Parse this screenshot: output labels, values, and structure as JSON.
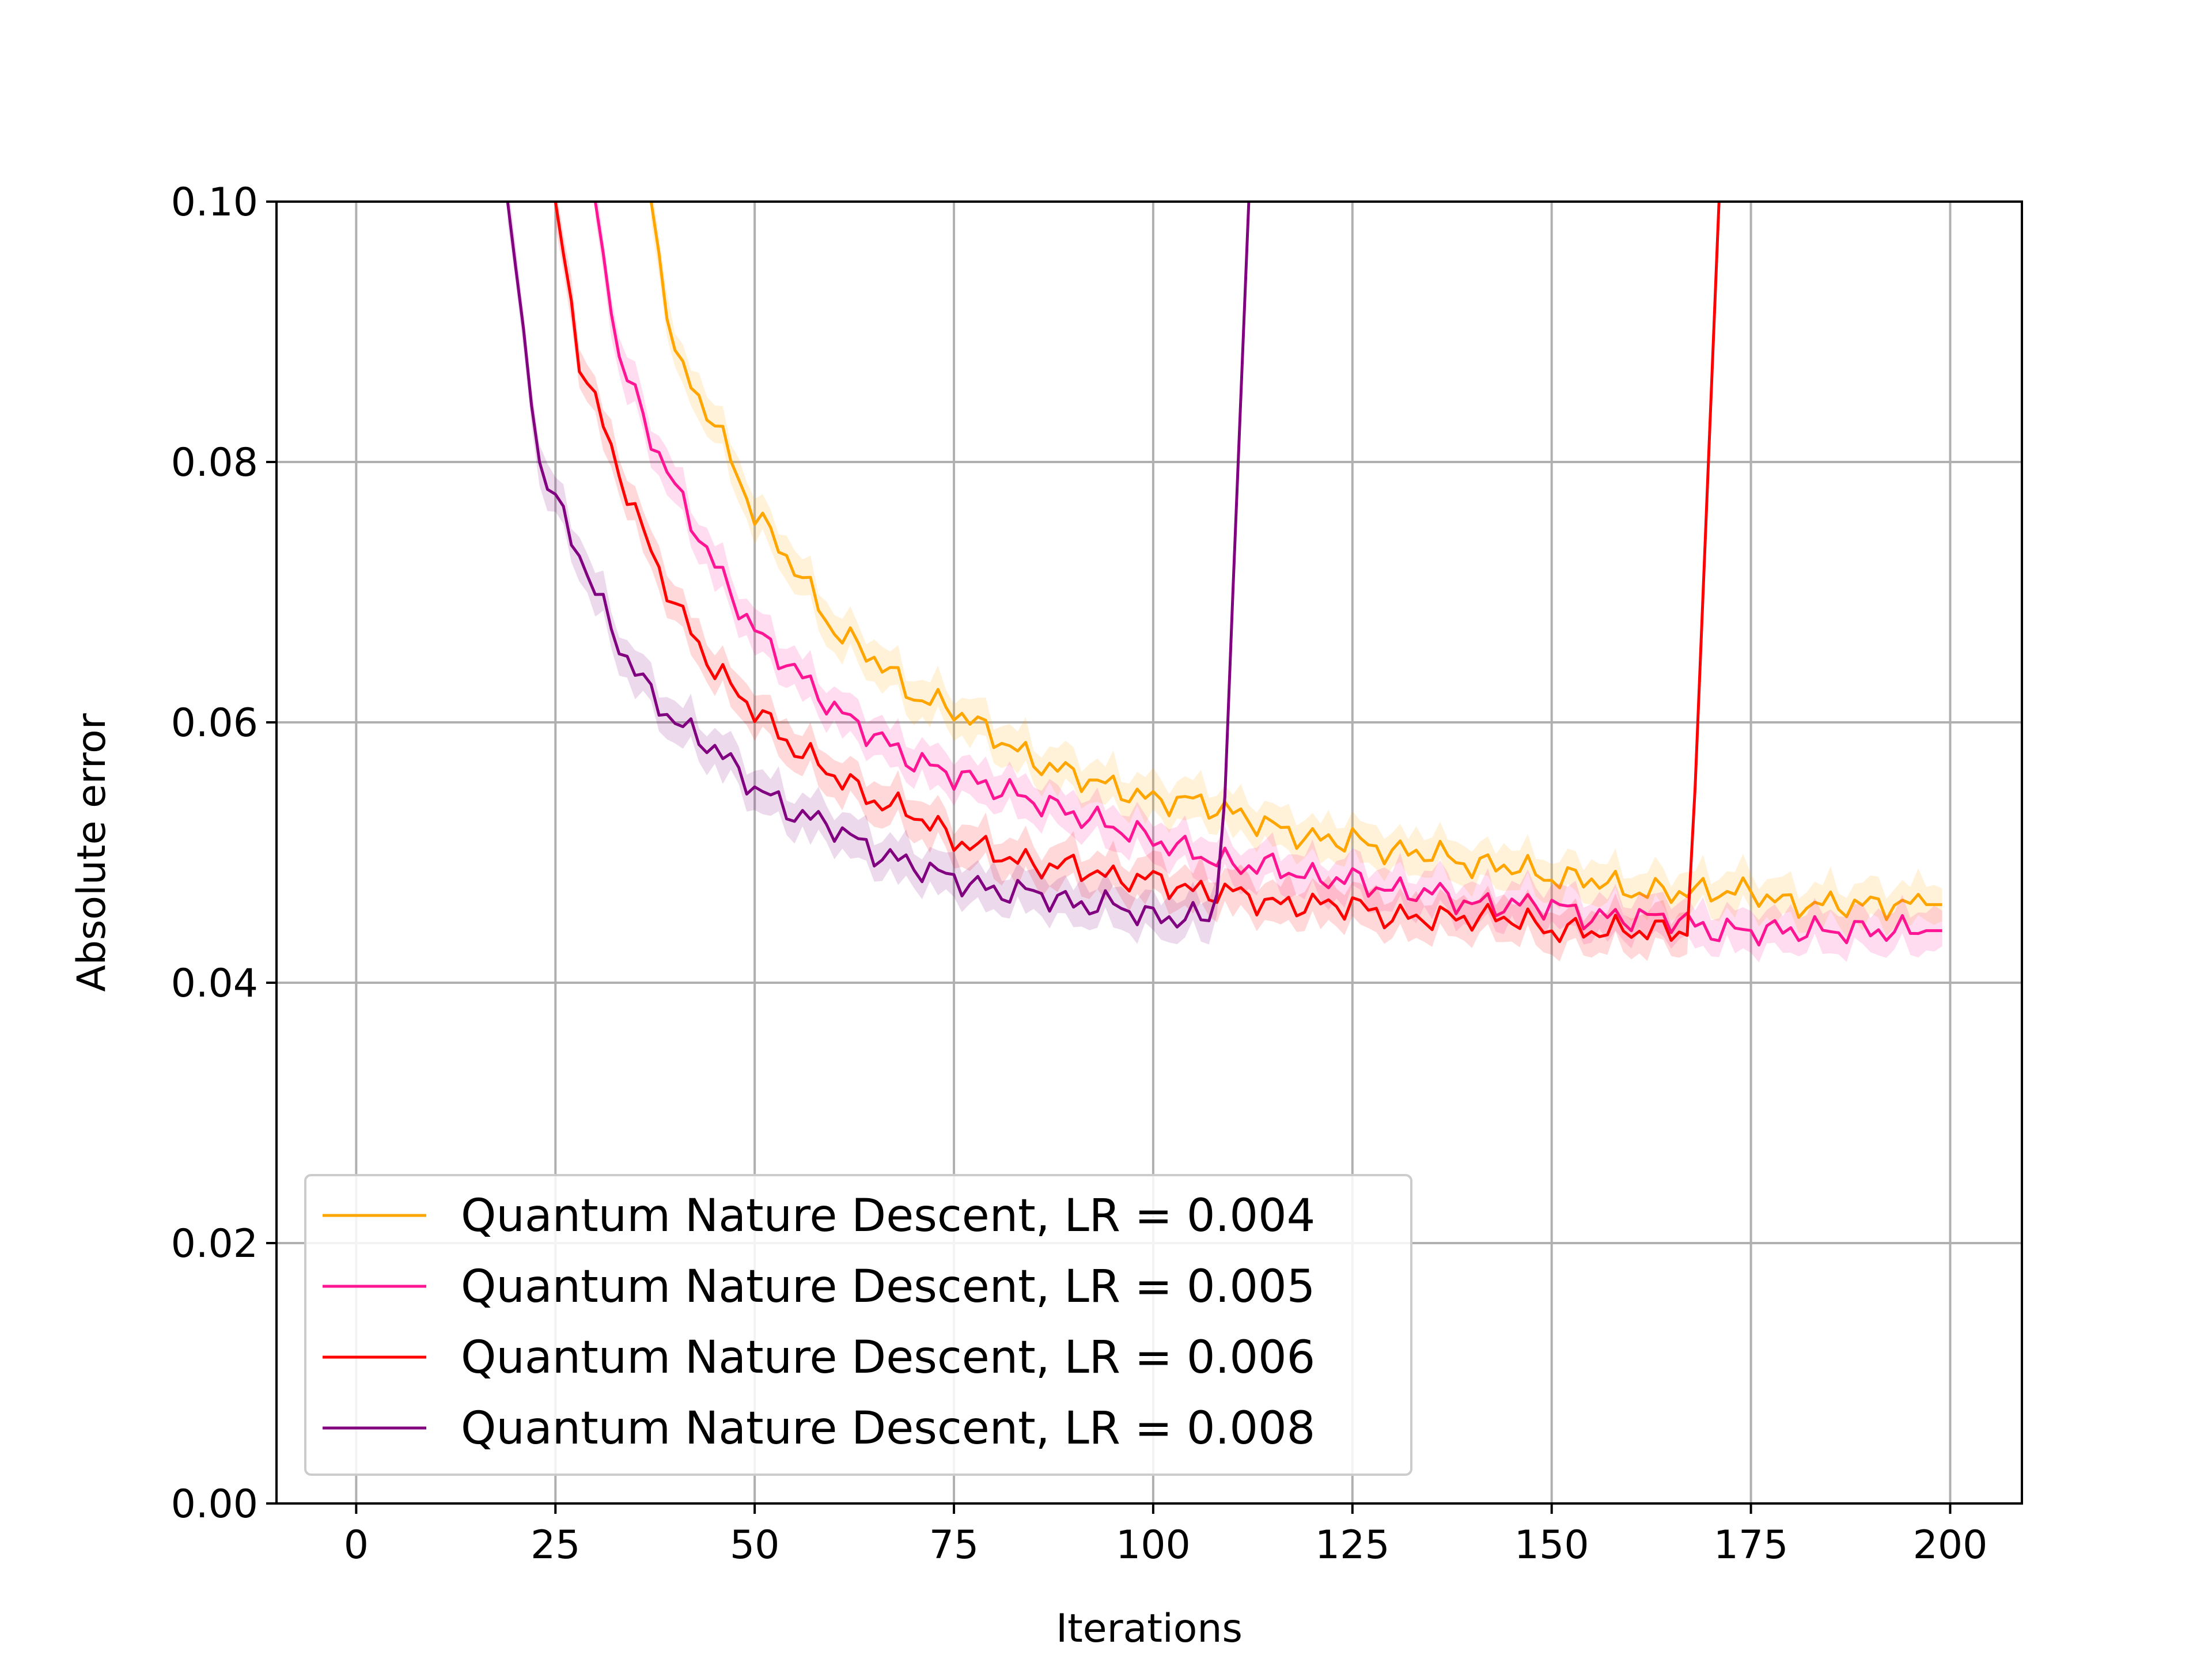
{
  "chart_data": {
    "type": "line",
    "title": "",
    "xlabel": "Iterations",
    "ylabel": "Absolute error",
    "xlim": [
      -10,
      209
    ],
    "ylim": [
      0.0,
      0.1
    ],
    "xticks": [
      0,
      25,
      50,
      75,
      100,
      125,
      150,
      175,
      200
    ],
    "yticks": [
      0.0,
      0.02,
      0.04,
      0.06,
      0.08,
      0.1
    ],
    "xtick_labels": [
      "0",
      "25",
      "50",
      "75",
      "100",
      "125",
      "150",
      "175",
      "200"
    ],
    "ytick_labels": [
      "0.00",
      "0.02",
      "0.04",
      "0.06",
      "0.08",
      "0.10"
    ],
    "grid": true,
    "legend_position": "lower-left",
    "series": [
      {
        "name": "Quantum Nature Descent, LR = 0.004",
        "color": "#FFA500",
        "shaded_band": true,
        "points": [
          [
            37,
            0.1
          ],
          [
            40,
            0.088
          ],
          [
            45,
            0.083
          ],
          [
            50,
            0.076
          ],
          [
            55,
            0.072
          ],
          [
            60,
            0.067
          ],
          [
            65,
            0.065
          ],
          [
            70,
            0.062
          ],
          [
            75,
            0.061
          ],
          [
            80,
            0.059
          ],
          [
            85,
            0.057
          ],
          [
            90,
            0.056
          ],
          [
            95,
            0.055
          ],
          [
            100,
            0.054
          ],
          [
            105,
            0.054
          ],
          [
            110,
            0.053
          ],
          [
            115,
            0.052
          ],
          [
            120,
            0.051
          ],
          [
            125,
            0.051
          ],
          [
            130,
            0.05
          ],
          [
            135,
            0.05
          ],
          [
            140,
            0.049
          ],
          [
            145,
            0.049
          ],
          [
            150,
            0.048
          ],
          [
            155,
            0.048
          ],
          [
            160,
            0.047
          ],
          [
            165,
            0.047
          ],
          [
            170,
            0.047
          ],
          [
            175,
            0.047
          ],
          [
            180,
            0.046
          ],
          [
            185,
            0.046
          ],
          [
            190,
            0.046
          ],
          [
            195,
            0.046
          ],
          [
            199,
            0.046
          ]
        ]
      },
      {
        "name": "Quantum Nature Descent, LR = 0.005",
        "color": "#FF1493",
        "shaded_band": true,
        "points": [
          [
            30,
            0.1
          ],
          [
            33,
            0.088
          ],
          [
            37,
            0.082
          ],
          [
            40,
            0.078
          ],
          [
            45,
            0.072
          ],
          [
            50,
            0.067
          ],
          [
            55,
            0.064
          ],
          [
            60,
            0.061
          ],
          [
            65,
            0.059
          ],
          [
            70,
            0.057
          ],
          [
            75,
            0.056
          ],
          [
            80,
            0.055
          ],
          [
            85,
            0.054
          ],
          [
            90,
            0.053
          ],
          [
            95,
            0.052
          ],
          [
            100,
            0.051
          ],
          [
            105,
            0.05
          ],
          [
            110,
            0.049
          ],
          [
            115,
            0.049
          ],
          [
            120,
            0.048
          ],
          [
            125,
            0.048
          ],
          [
            130,
            0.047
          ],
          [
            135,
            0.047
          ],
          [
            140,
            0.046
          ],
          [
            145,
            0.046
          ],
          [
            150,
            0.046
          ],
          [
            155,
            0.045
          ],
          [
            160,
            0.045
          ],
          [
            165,
            0.045
          ],
          [
            170,
            0.044
          ],
          [
            175,
            0.044
          ],
          [
            180,
            0.044
          ],
          [
            185,
            0.044
          ],
          [
            190,
            0.044
          ],
          [
            195,
            0.044
          ],
          [
            199,
            0.044
          ]
        ]
      },
      {
        "name": "Quantum Nature Descent, LR = 0.006",
        "color": "#FF0000",
        "shaded_band": true,
        "points": [
          [
            25,
            0.1
          ],
          [
            28,
            0.088
          ],
          [
            32,
            0.081
          ],
          [
            35,
            0.076
          ],
          [
            40,
            0.069
          ],
          [
            45,
            0.064
          ],
          [
            50,
            0.061
          ],
          [
            55,
            0.058
          ],
          [
            60,
            0.056
          ],
          [
            65,
            0.054
          ],
          [
            70,
            0.053
          ],
          [
            75,
            0.051
          ],
          [
            80,
            0.05
          ],
          [
            85,
            0.049
          ],
          [
            90,
            0.049
          ],
          [
            95,
            0.048
          ],
          [
            100,
            0.048
          ],
          [
            105,
            0.047
          ],
          [
            110,
            0.047
          ],
          [
            115,
            0.046
          ],
          [
            120,
            0.046
          ],
          [
            125,
            0.046
          ],
          [
            130,
            0.045
          ],
          [
            135,
            0.045
          ],
          [
            140,
            0.045
          ],
          [
            145,
            0.045
          ],
          [
            150,
            0.044
          ],
          [
            155,
            0.044
          ],
          [
            160,
            0.044
          ],
          [
            165,
            0.044
          ],
          [
            167,
            0.044
          ],
          [
            168,
            0.055
          ],
          [
            169,
            0.07
          ],
          [
            170,
            0.085
          ],
          [
            171,
            0.1
          ]
        ]
      },
      {
        "name": "Quantum Nature Descent, LR = 0.008",
        "color": "#800080",
        "shaded_band": true,
        "points": [
          [
            19,
            0.1
          ],
          [
            21,
            0.09
          ],
          [
            23,
            0.08
          ],
          [
            25,
            0.077
          ],
          [
            28,
            0.073
          ],
          [
            30,
            0.07
          ],
          [
            33,
            0.066
          ],
          [
            36,
            0.063
          ],
          [
            40,
            0.06
          ],
          [
            45,
            0.058
          ],
          [
            50,
            0.055
          ],
          [
            55,
            0.053
          ],
          [
            60,
            0.052
          ],
          [
            65,
            0.05
          ],
          [
            70,
            0.049
          ],
          [
            75,
            0.048
          ],
          [
            80,
            0.047
          ],
          [
            85,
            0.047
          ],
          [
            90,
            0.046
          ],
          [
            95,
            0.046
          ],
          [
            100,
            0.045
          ],
          [
            105,
            0.045
          ],
          [
            107,
            0.045
          ],
          [
            108,
            0.047
          ],
          [
            109,
            0.055
          ],
          [
            110,
            0.07
          ],
          [
            111,
            0.085
          ],
          [
            112,
            0.1
          ]
        ]
      }
    ]
  }
}
